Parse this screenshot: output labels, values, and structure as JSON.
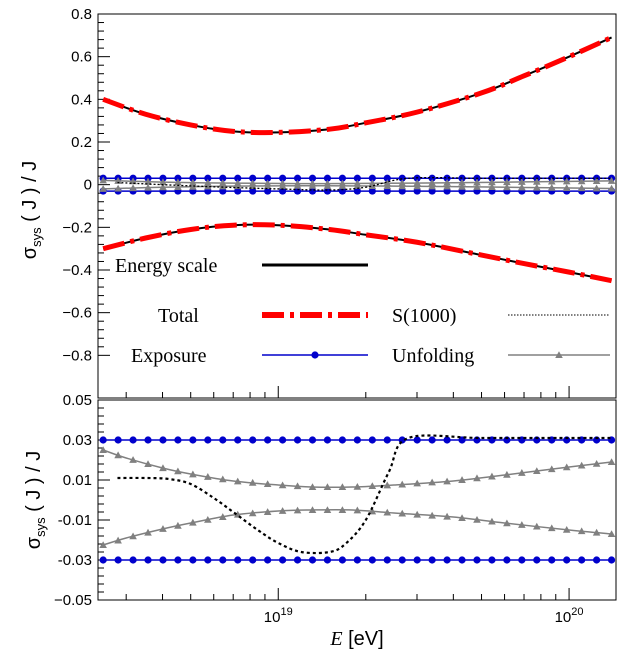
{
  "chart_data": [
    {
      "type": "line",
      "panel": "top",
      "ylabel": "σ_sys ( J ) / J",
      "ylabel_main": "σ",
      "ylabel_sub": "sys",
      "ylabel_rest": " ( J ) / J",
      "xscale": "log",
      "xlim": [
        2.4e+18,
        1.45e+20
      ],
      "ylim": [
        -1.0,
        0.8
      ],
      "yticks": [
        -0.8,
        -0.6,
        -0.4,
        -0.2,
        0,
        0.2,
        0.4,
        0.6,
        0.8
      ],
      "ytick_labels": [
        "−0.8",
        "−0.6",
        "−0.4",
        "−0.2",
        "0",
        "0.2",
        "0.4",
        "0.6",
        "0.8"
      ],
      "legend": [
        {
          "label": "Energy scale",
          "color": "#000000",
          "style": "solid"
        },
        {
          "label": "Total",
          "color": "#ff0000",
          "style": "dash-dot"
        },
        {
          "label": "S(1000)",
          "color": "#000000",
          "style": "dotted"
        },
        {
          "label": "Exposure",
          "color": "#0000cc",
          "style": "solid-circle"
        },
        {
          "label": "Unfolding",
          "color": "#808080",
          "style": "solid-triangle"
        }
      ],
      "series": [
        {
          "name": "Total",
          "band": "upper",
          "color": "#ff0000",
          "x": [
            2.5e+18,
            3.5e+18,
            5e+18,
            7e+18,
            1e+19,
            1.5e+19,
            2e+19,
            3e+19,
            5e+19,
            7e+19,
            1e+20,
            1.4e+20
          ],
          "y": [
            0.4,
            0.33,
            0.28,
            0.25,
            0.245,
            0.26,
            0.29,
            0.34,
            0.43,
            0.51,
            0.6,
            0.69
          ]
        },
        {
          "name": "Total",
          "band": "lower",
          "color": "#ff0000",
          "x": [
            2.5e+18,
            3.5e+18,
            5e+18,
            7e+18,
            1e+19,
            1.5e+19,
            2e+19,
            3e+19,
            5e+19,
            7e+19,
            1e+20,
            1.4e+20
          ],
          "y": [
            -0.3,
            -0.25,
            -0.21,
            -0.19,
            -0.19,
            -0.21,
            -0.235,
            -0.27,
            -0.33,
            -0.37,
            -0.41,
            -0.45
          ]
        },
        {
          "name": "Exposure",
          "band": "upper",
          "color": "#0000cc",
          "x": [
            2.5e+18,
            1.4e+20
          ],
          "y": [
            0.03,
            0.03
          ]
        },
        {
          "name": "Exposure",
          "band": "lower",
          "color": "#0000cc",
          "x": [
            2.5e+18,
            1.4e+20
          ],
          "y": [
            -0.03,
            -0.03
          ]
        },
        {
          "name": "Unfolding",
          "band": "upper",
          "color": "#808080",
          "x": [
            2.5e+18,
            4e+18,
            7e+18,
            1.2e+19,
            2e+19,
            4e+19,
            7e+19,
            1.4e+20
          ],
          "y": [
            0.02,
            0.012,
            0.007,
            0.005,
            0.006,
            0.009,
            0.013,
            0.018
          ]
        },
        {
          "name": "Unfolding",
          "band": "lower",
          "color": "#808080",
          "x": [
            2.5e+18,
            4e+18,
            7e+18,
            1.2e+19,
            2e+19,
            4e+19,
            7e+19,
            1.4e+20
          ],
          "y": [
            -0.02,
            -0.012,
            -0.007,
            -0.005,
            -0.006,
            -0.009,
            -0.013,
            -0.018
          ]
        },
        {
          "name": "S(1000)",
          "color": "#000000",
          "x": [
            2.8e+18,
            4e+18,
            6e+18,
            1e+19,
            1.5e+19,
            2e+19,
            2.8e+19,
            5e+19,
            1e+20,
            1.4e+20
          ],
          "y": [
            0.01,
            0.0,
            -0.01,
            -0.02,
            -0.025,
            -0.012,
            0.03,
            0.03,
            0.03,
            0.03
          ]
        }
      ]
    },
    {
      "type": "line",
      "panel": "bottom",
      "xlabel": "E [eV]",
      "xlabel_var": "E",
      "xlabel_unit": " [eV]",
      "ylabel": "σ_sys ( J ) / J",
      "ylabel_main": "σ",
      "ylabel_sub": "sys",
      "ylabel_rest": " ( J ) / J",
      "xscale": "log",
      "xlim": [
        2.4e+18,
        1.45e+20
      ],
      "ylim": [
        -0.05,
        0.05
      ],
      "yticks": [
        -0.05,
        -0.03,
        -0.01,
        0.01,
        0.03,
        0.05
      ],
      "ytick_labels": [
        "−0.05",
        "-0.03",
        "-0.01",
        "0.01",
        "0.03",
        "0.05"
      ],
      "xtick_labels": [
        {
          "value": 1e+19,
          "base": "10",
          "exp": "19"
        },
        {
          "value": 1e+20,
          "base": "10",
          "exp": "20"
        }
      ],
      "series": [
        {
          "name": "Exposure",
          "band": "upper",
          "color": "#0000cc",
          "x": [
            2.5e+18,
            1.4e+20
          ],
          "y": [
            0.03,
            0.03
          ]
        },
        {
          "name": "Exposure",
          "band": "lower",
          "color": "#0000cc",
          "x": [
            2.5e+18,
            1.4e+20
          ],
          "y": [
            -0.03,
            -0.03
          ]
        },
        {
          "name": "Unfolding",
          "band": "upper",
          "color": "#808080",
          "x": [
            2.5e+18,
            3e+18,
            4e+18,
            5e+18,
            7e+18,
            1e+19,
            1.3e+19,
            1.8e+19,
            2.5e+19,
            4e+19,
            6e+19,
            1e+20,
            1.4e+20
          ],
          "y": [
            0.025,
            0.021,
            0.016,
            0.013,
            0.0095,
            0.0075,
            0.0065,
            0.0065,
            0.0075,
            0.0095,
            0.0125,
            0.0165,
            0.019
          ]
        },
        {
          "name": "Unfolding",
          "band": "lower",
          "color": "#808080",
          "x": [
            2.5e+18,
            3e+18,
            4e+18,
            5e+18,
            7e+18,
            1e+19,
            1.3e+19,
            1.8e+19,
            2.5e+19,
            4e+19,
            6e+19,
            1e+20,
            1.4e+20
          ],
          "y": [
            -0.0225,
            -0.019,
            -0.0145,
            -0.0115,
            -0.0075,
            -0.0055,
            -0.005,
            -0.005,
            -0.0065,
            -0.0085,
            -0.0115,
            -0.015,
            -0.017
          ]
        },
        {
          "name": "S(1000)",
          "color": "#000000",
          "x": [
            2.8e+18,
            3.5e+18,
            4.2e+18,
            5e+18,
            6e+18,
            7e+18,
            8.5e+18,
            1e+19,
            1.2e+19,
            1.5e+19,
            1.7e+19,
            2e+19,
            2.4e+19,
            2.8e+19,
            5e+19,
            1e+20,
            1.4e+20
          ],
          "y": [
            0.011,
            0.011,
            0.0105,
            0.008,
            0.001,
            -0.006,
            -0.015,
            -0.0215,
            -0.026,
            -0.026,
            -0.022,
            -0.01,
            0.014,
            0.031,
            0.031,
            0.031,
            0.031
          ]
        }
      ]
    }
  ]
}
